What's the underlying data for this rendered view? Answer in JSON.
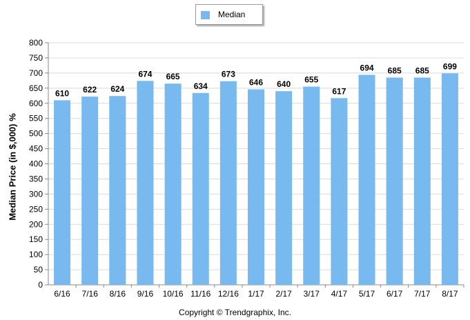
{
  "chart_data": {
    "type": "bar",
    "categories": [
      "6/16",
      "7/16",
      "8/16",
      "9/16",
      "10/16",
      "11/16",
      "12/16",
      "1/17",
      "2/17",
      "3/17",
      "4/17",
      "5/17",
      "6/17",
      "7/17",
      "8/17"
    ],
    "series": [
      {
        "name": "Median",
        "values": [
          610,
          622,
          624,
          674,
          665,
          634,
          673,
          646,
          640,
          655,
          617,
          694,
          685,
          685,
          699
        ]
      }
    ],
    "ylabel": "Median Price (in $,000) %",
    "xlabel": "",
    "ylim": [
      0,
      800
    ],
    "yticks": [
      0,
      50,
      100,
      150,
      200,
      250,
      300,
      350,
      400,
      450,
      500,
      550,
      600,
      650,
      700,
      750,
      800
    ],
    "grid": true,
    "legend": "top-center",
    "data_labels": true,
    "bar_color": "#78b9f0"
  },
  "footer": {
    "copyright": "Copyright © Trendgraphix, Inc."
  }
}
